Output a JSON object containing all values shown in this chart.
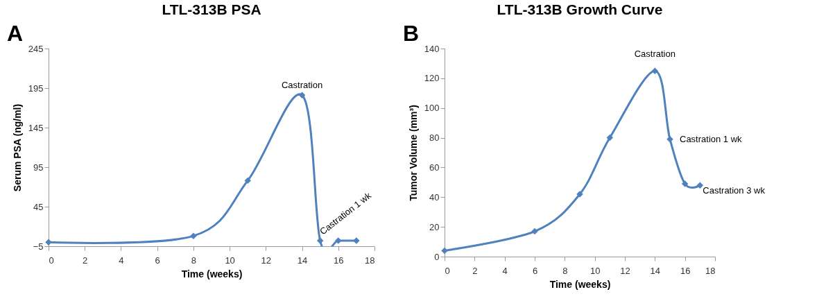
{
  "chart_data": [
    {
      "type": "line",
      "title": "LTL-313B PSA",
      "xlabel": "Time (weeks)",
      "ylabel": "Serum PSA (ng/ml)",
      "x": [
        0,
        8,
        11,
        14,
        15,
        16,
        17
      ],
      "series": [
        {
          "color": "#4f81bd",
          "values": [
            0,
            8,
            78,
            186,
            2,
            2,
            2
          ]
        }
      ],
      "xlim": [
        0,
        18
      ],
      "xticks": [
        0,
        2,
        4,
        6,
        8,
        10,
        12,
        14,
        16,
        18
      ],
      "ylim": [
        -5,
        245
      ],
      "yticks": [
        -5,
        45,
        95,
        145,
        195,
        245
      ],
      "marker": "diamond",
      "line_style": "solid",
      "annotations": [
        "A",
        {
          "text": "Castration",
          "x": 14,
          "y": 186
        },
        {
          "text": "Castration 1 wk",
          "x": 15,
          "y": 2
        }
      ]
    },
    {
      "type": "line",
      "title": "LTL-313B Growth Curve",
      "xlabel": "Time (weeks)",
      "ylabel": "Tumor Volume (mm³)",
      "x": [
        0,
        6,
        9,
        11,
        14,
        15,
        16,
        17
      ],
      "series": [
        {
          "color": "#4f81bd",
          "values": [
            4,
            17,
            42,
            80,
            125,
            79,
            49,
            48
          ]
        }
      ],
      "xlim": [
        0,
        18
      ],
      "xticks": [
        0,
        2,
        4,
        6,
        8,
        10,
        12,
        14,
        16,
        18
      ],
      "ylim": [
        0,
        140
      ],
      "yticks": [
        0,
        20,
        40,
        60,
        80,
        100,
        120,
        140
      ],
      "marker": "diamond",
      "line_style": "solid",
      "annotations": [
        "B",
        {
          "text": "Castration",
          "x": 14,
          "y": 125
        },
        {
          "text": "Castration 1 wk",
          "x": 15,
          "y": 79
        },
        {
          "text": "Castration 3 wk",
          "x": 17,
          "y": 48
        }
      ]
    }
  ]
}
